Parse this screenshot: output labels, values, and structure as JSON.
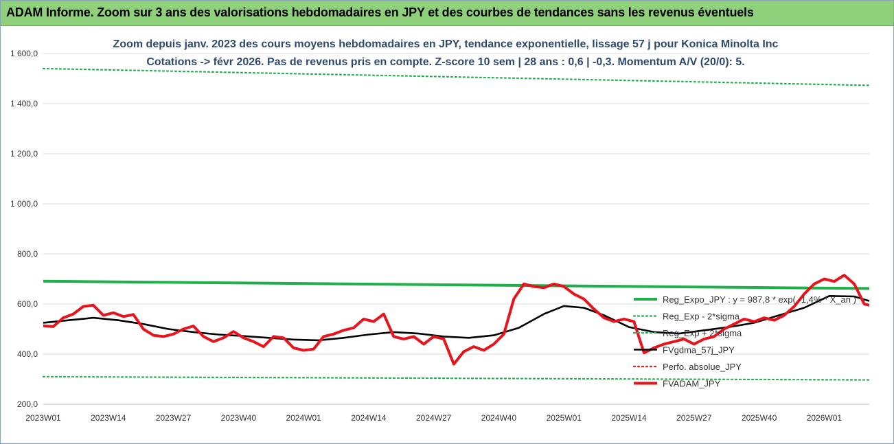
{
  "banner": {
    "title": "ADAM Informe. Zoom sur 3 ans des valorisations hebdomadaires en JPY et des courbes de tendances sans les revenus éventuels",
    "color": "#8fd07a"
  },
  "chart_data": {
    "type": "line",
    "title_line1": "Zoom depuis janv. 2023 des cours moyens hebdomadaires en JPY, tendance exponentielle, lissage 57 j pour Konica Minolta Inc",
    "title_line2": "Cotations -> févr 2026. Pas de revenus pris en compte. Z-score 10 sem | 28 ans : 0,6 | -0,3. Momentum A/V (20/0): 5.",
    "ylim": [
      200,
      1600
    ],
    "y_ticks": [
      "200,0",
      "400,0",
      "600,0",
      "800,0",
      "1 000,0",
      "1 200,0",
      "1 400,0",
      "1 600,0"
    ],
    "y_tick_values": [
      200,
      400,
      600,
      800,
      1000,
      1200,
      1400,
      1600
    ],
    "x_ticks": [
      "2023W01",
      "2023W14",
      "2023W27",
      "2023W40",
      "2024W01",
      "2024W14",
      "2024W27",
      "2024W40",
      "2025W01",
      "2025W14",
      "2025W27",
      "2025W40",
      "2026W01"
    ],
    "x_tick_index": [
      0,
      13,
      26,
      39,
      52,
      65,
      78,
      91,
      104,
      117,
      130,
      143,
      156
    ],
    "x_max_index": 165,
    "grid": "horizontal",
    "legend_position": "right",
    "series": [
      {
        "name": "Reg_Expo_JPY : y = 987,8 * exp( -1,4% * X_an )",
        "color": "#1fb04c",
        "style": "solid-thick",
        "x": [
          0,
          165
        ],
        "values": [
          691,
          662
        ]
      },
      {
        "name": "Reg_Exp - 2*sigma",
        "color": "#1fb04c",
        "style": "dotted",
        "x": [
          0,
          165
        ],
        "values": [
          310,
          297
        ]
      },
      {
        "name": "Reg_Exp + 2*sigma",
        "color": "#1fb04c",
        "style": "dotted",
        "x": [
          0,
          165
        ],
        "values": [
          1540,
          1473
        ]
      },
      {
        "name": "FVgdma_57j_JPY",
        "color": "#000000",
        "style": "solid",
        "x": [
          0,
          5,
          10,
          15,
          20,
          25,
          30,
          35,
          40,
          45,
          50,
          55,
          60,
          65,
          70,
          75,
          80,
          85,
          90,
          95,
          100,
          104,
          108,
          112,
          117,
          122,
          127,
          132,
          137,
          142,
          147,
          152,
          157,
          162,
          165
        ],
        "values": [
          525,
          535,
          545,
          535,
          520,
          500,
          488,
          478,
          472,
          465,
          458,
          455,
          465,
          478,
          488,
          482,
          470,
          465,
          475,
          505,
          560,
          592,
          585,
          555,
          508,
          488,
          482,
          495,
          508,
          525,
          555,
          585,
          632,
          630,
          612
        ]
      },
      {
        "name": "Perfo. absolue_JPY",
        "color": "#e02020",
        "style": "dotted",
        "x": [],
        "values": []
      },
      {
        "name": "FVADAM_JPY",
        "color": "#e8131b",
        "style": "solid-thick",
        "x": [
          0,
          2,
          4,
          6,
          8,
          10,
          12,
          14,
          16,
          18,
          20,
          22,
          24,
          26,
          28,
          30,
          32,
          34,
          36,
          38,
          40,
          42,
          44,
          46,
          48,
          50,
          52,
          54,
          56,
          58,
          60,
          62,
          64,
          66,
          68,
          70,
          72,
          74,
          76,
          78,
          80,
          82,
          84,
          86,
          88,
          90,
          92,
          94,
          96,
          98,
          100,
          102,
          104,
          106,
          108,
          110,
          112,
          114,
          116,
          118,
          120,
          122,
          124,
          126,
          128,
          130,
          132,
          134,
          136,
          138,
          140,
          142,
          144,
          146,
          148,
          150,
          152,
          154,
          156,
          158,
          160,
          162,
          164,
          165
        ],
        "values": [
          513,
          510,
          545,
          560,
          590,
          595,
          555,
          565,
          550,
          558,
          500,
          475,
          470,
          480,
          500,
          512,
          470,
          450,
          465,
          490,
          465,
          450,
          430,
          470,
          465,
          425,
          415,
          420,
          470,
          480,
          495,
          505,
          540,
          530,
          560,
          470,
          460,
          470,
          440,
          470,
          460,
          360,
          410,
          430,
          415,
          440,
          480,
          620,
          680,
          670,
          665,
          680,
          670,
          640,
          620,
          580,
          545,
          530,
          540,
          530,
          405,
          425,
          440,
          450,
          460,
          440,
          460,
          470,
          500,
          520,
          540,
          530,
          545,
          535,
          555,
          590,
          640,
          680,
          700,
          690,
          715,
          680,
          600,
          595
        ]
      }
    ]
  }
}
